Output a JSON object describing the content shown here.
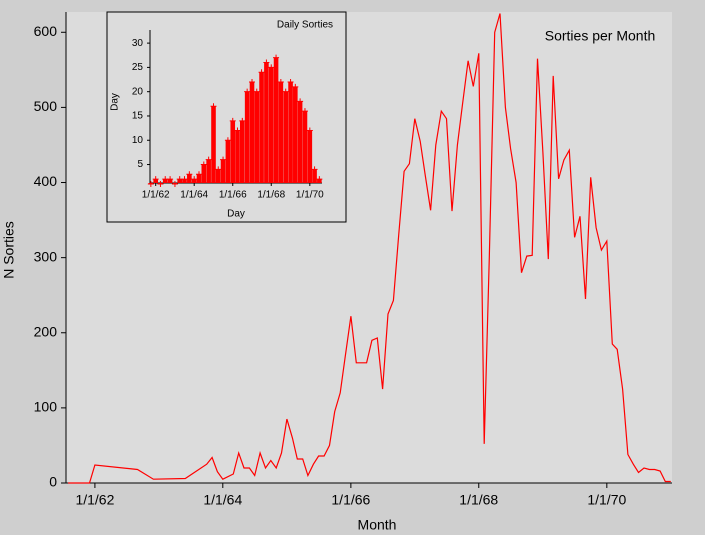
{
  "chart_data": [
    {
      "type": "line",
      "annotation": "Sorties per Month",
      "x_label": "Month",
      "y_label": "N Sorties",
      "color": "#ff0000",
      "grid": false,
      "xlim": [
        "1961-07-20",
        "1971-01-08"
      ],
      "ylim": [
        0,
        627
      ],
      "xticks": [
        {
          "value": "1962-01-01",
          "label": "1/1/62"
        },
        {
          "value": "1964-01-01",
          "label": "1/1/64"
        },
        {
          "value": "1966-01-01",
          "label": "1/1/66"
        },
        {
          "value": "1968-01-01",
          "label": "1/1/68"
        },
        {
          "value": "1970-01-01",
          "label": "1/1/70"
        }
      ],
      "yticks": [
        0,
        100,
        200,
        300,
        400,
        500,
        600
      ],
      "x": [
        "1961-08",
        "1961-12",
        "1962-01",
        "1962-09",
        "1962-12",
        "1963-06",
        "1963-10",
        "1963-11",
        "1963-12",
        "1964-01",
        "1964-03",
        "1964-04",
        "1964-05",
        "1964-06",
        "1964-07",
        "1964-08",
        "1964-09",
        "1964-10",
        "1964-11",
        "1964-12",
        "1965-01",
        "1965-02",
        "1965-03",
        "1965-04",
        "1965-05",
        "1965-06",
        "1965-07",
        "1965-08",
        "1965-09",
        "1965-10",
        "1965-11",
        "1965-12",
        "1966-01",
        "1966-02",
        "1966-03",
        "1966-04",
        "1966-05",
        "1966-06",
        "1966-07",
        "1966-08",
        "1966-09",
        "1966-10",
        "1966-11",
        "1966-12",
        "1967-01",
        "1967-02",
        "1967-03",
        "1967-04",
        "1967-05",
        "1967-06",
        "1967-07",
        "1967-08",
        "1967-09",
        "1967-10",
        "1967-11",
        "1967-12",
        "1968-01",
        "1968-02",
        "1968-03",
        "1968-04",
        "1968-05",
        "1968-06",
        "1968-07",
        "1968-08",
        "1968-09",
        "1968-10",
        "1968-11",
        "1968-12",
        "1969-01",
        "1969-02",
        "1969-03",
        "1969-04",
        "1969-05",
        "1969-06",
        "1969-07",
        "1969-08",
        "1969-09",
        "1969-10",
        "1969-11",
        "1969-12",
        "1970-01",
        "1970-02",
        "1970-03",
        "1970-04",
        "1970-05",
        "1970-06",
        "1970-07",
        "1970-08",
        "1970-09",
        "1970-10",
        "1970-11",
        "1970-12",
        "1971-01"
      ],
      "values": [
        0,
        0,
        24,
        18,
        5,
        6,
        25,
        34,
        15,
        5,
        12,
        40,
        20,
        20,
        10,
        40,
        20,
        30,
        20,
        40,
        85,
        60,
        32,
        32,
        10,
        25,
        36,
        36,
        50,
        95,
        120,
        170,
        222,
        160,
        160,
        160,
        190,
        193,
        125,
        225,
        243,
        330,
        415,
        425,
        485,
        455,
        410,
        363,
        450,
        495,
        485,
        362,
        450,
        505,
        562,
        528,
        572,
        52,
        300,
        600,
        625,
        500,
        445,
        400,
        280,
        302,
        303,
        565,
        440,
        298,
        542,
        405,
        430,
        443,
        327,
        355,
        245,
        407,
        340,
        310,
        322,
        185,
        178,
        125,
        38,
        25,
        14,
        20,
        18,
        18,
        16,
        2,
        2
      ]
    },
    {
      "type": "bar",
      "title": "Daily Sorties",
      "x_label": "Day",
      "y_label": "Day",
      "color": "#ff0000",
      "grid": false,
      "xlim": [
        "1961-09-15",
        "1970-08-20"
      ],
      "ylim": [
        1.2,
        32.7
      ],
      "xticks": [
        {
          "value": "1962-01-01",
          "label": "1/1/62"
        },
        {
          "value": "1964-01-01",
          "label": "1/1/64"
        },
        {
          "value": "1966-01-01",
          "label": "1/1/66"
        },
        {
          "value": "1968-01-01",
          "label": "1/1/68"
        },
        {
          "value": "1970-01-01",
          "label": "1/1/70"
        }
      ],
      "yticks": [
        5,
        10,
        15,
        20,
        25,
        30
      ],
      "x": [
        "1961-10",
        "1962-01",
        "1962-04",
        "1962-07",
        "1962-10",
        "1963-01",
        "1963-04",
        "1963-07",
        "1963-10",
        "1964-01",
        "1964-04",
        "1964-07",
        "1964-10",
        "1965-01",
        "1965-04",
        "1965-07",
        "1965-10",
        "1966-01",
        "1966-04",
        "1966-07",
        "1966-10",
        "1967-01",
        "1967-04",
        "1967-07",
        "1967-10",
        "1968-01",
        "1968-04",
        "1968-07",
        "1968-10",
        "1969-01",
        "1969-04",
        "1969-07",
        "1969-10",
        "1970-01",
        "1970-04",
        "1970-07"
      ],
      "values": [
        1,
        2,
        1,
        2,
        2,
        1,
        2,
        2,
        3,
        2,
        3,
        5,
        6,
        17,
        4,
        6,
        10,
        14,
        12,
        14,
        20,
        22,
        20,
        24,
        26,
        25,
        27,
        22,
        20,
        22,
        21,
        18,
        16,
        12,
        4,
        2
      ]
    }
  ]
}
